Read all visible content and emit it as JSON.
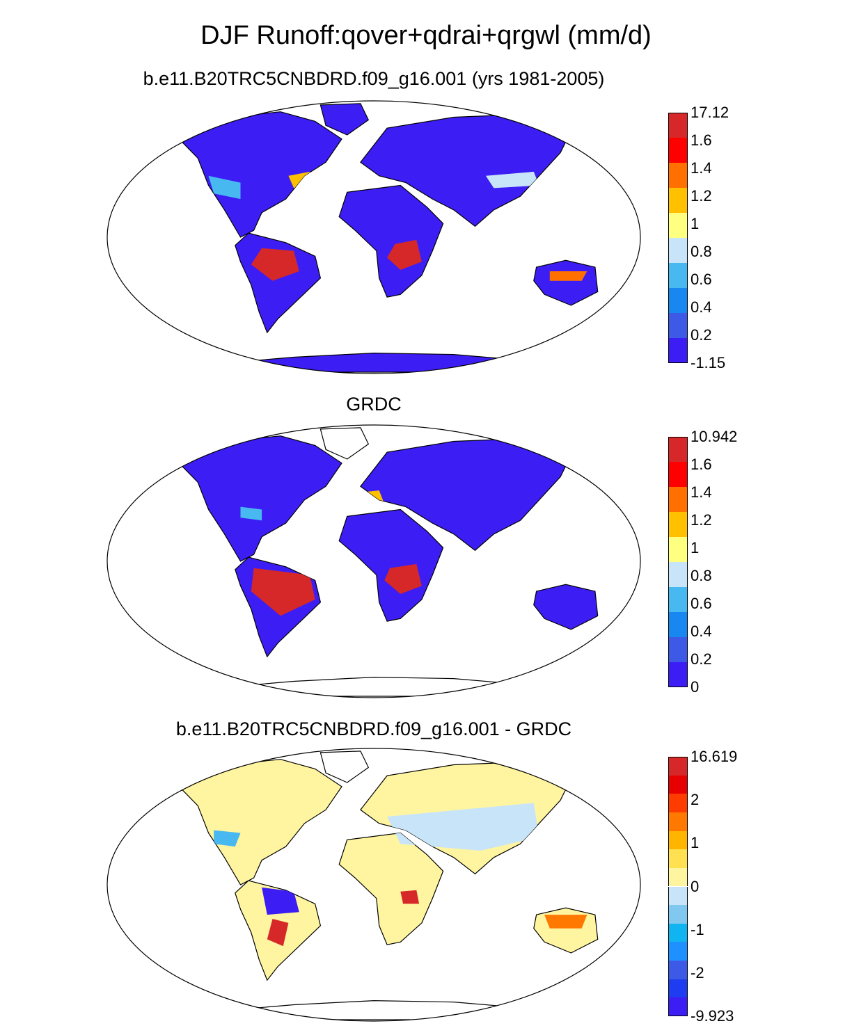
{
  "figure": {
    "title": "DJF Runoff:qover+qdrai+qrgwl (mm/d)"
  },
  "panels": [
    {
      "title": "b.e11.B20TRC5CNBDRD.f09_g16.001 (yrs 1981-2005)",
      "colorbar": {
        "labels": [
          "17.12",
          "1.6",
          "1.4",
          "1.2",
          "1",
          "0.8",
          "0.6",
          "0.4",
          "0.2",
          "-1.15"
        ],
        "colors": [
          "#d62828",
          "#ff0000",
          "#ff7000",
          "#ffc000",
          "#ffff80",
          "#c8e4f8",
          "#48b8f0",
          "#1888f0",
          "#3c5ae6",
          "#3c1ef5"
        ]
      },
      "field_palette": {
        "land_base": "#3c1ef5",
        "patches": [
          "#48b8f0",
          "#d62828",
          "#ff7000",
          "#ffc000",
          "#c8e4f8"
        ]
      }
    },
    {
      "title": "GRDC",
      "colorbar": {
        "labels": [
          "10.942",
          "1.6",
          "1.4",
          "1.2",
          "1",
          "0.8",
          "0.6",
          "0.4",
          "0.2",
          "0"
        ],
        "colors": [
          "#d62828",
          "#ff0000",
          "#ff7000",
          "#ffc000",
          "#ffff80",
          "#c8e4f8",
          "#48b8f0",
          "#1888f0",
          "#3c5ae6",
          "#3c1ef5"
        ]
      },
      "field_palette": {
        "land_base": "#3c1ef5",
        "patches": [
          "#d62828",
          "#ffc000",
          "#48b8f0"
        ]
      }
    },
    {
      "title": "b.e11.B20TRC5CNBDRD.f09_g16.001 - GRDC",
      "colorbar": {
        "labels": [
          "16.619",
          "",
          "2",
          "",
          "1",
          "",
          "0",
          "",
          "-1",
          "",
          "-2",
          "",
          "-9.923"
        ],
        "colors": [
          "#d62828",
          "#e60000",
          "#ff3c00",
          "#ff7800",
          "#ffb400",
          "#ffe050",
          "#fff5a0",
          "#c8e4f8",
          "#80c8f0",
          "#10b4f0",
          "#1e90ff",
          "#3c5ae6",
          "#1e3cf0",
          "#3c1ef5"
        ]
      },
      "field_palette": {
        "land_base": "#fff5a0",
        "patches": [
          "#c8e4f8",
          "#3c1ef5",
          "#d62828",
          "#ff7800",
          "#48b8f0"
        ]
      }
    }
  ]
}
